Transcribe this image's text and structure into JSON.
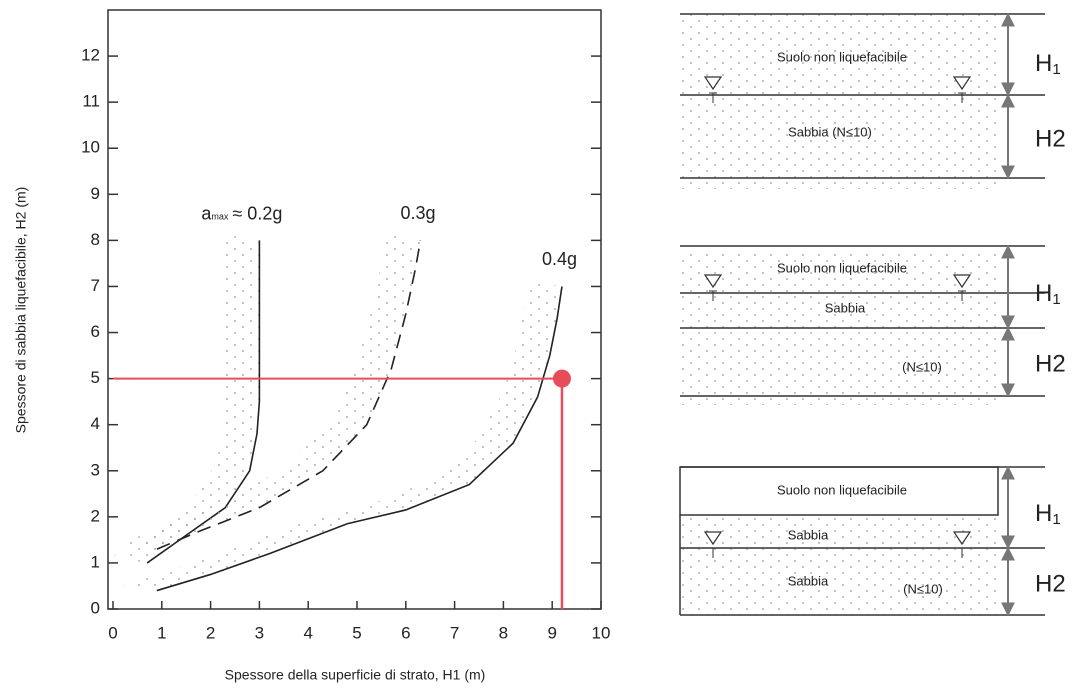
{
  "chart_data": {
    "type": "line",
    "y_label": "Spessore di sabbia liquefacibile, H2 (m)",
    "x_label": "Spessore della superficie di strato, H1 (m)",
    "xlim": [
      0,
      10
    ],
    "ylim": [
      0,
      13
    ],
    "xticks": [
      0,
      1,
      2,
      3,
      4,
      5,
      6,
      7,
      8,
      9,
      10
    ],
    "yticks": [
      0,
      1,
      2,
      3,
      4,
      5,
      6,
      7,
      8,
      9,
      10,
      11,
      12
    ],
    "amax_symbol": "a",
    "amax_subscript": "max",
    "series": [
      {
        "name": "≈ 0.2g",
        "color": "#222222",
        "dash": "none",
        "x": [
          0.7,
          1.5,
          2.3,
          2.8,
          2.95,
          3.0,
          3.0,
          3.0,
          3.0
        ],
        "values": [
          1.0,
          1.6,
          2.2,
          3.0,
          3.8,
          4.5,
          5.0,
          6.5,
          8.0
        ]
      },
      {
        "name": "0.3g",
        "color": "#222222",
        "dash": "14 8",
        "x": [
          0.9,
          1.8,
          3.0,
          4.3,
          5.2,
          5.7,
          6.0,
          6.2,
          6.3
        ],
        "values": [
          1.3,
          1.7,
          2.2,
          3.0,
          4.0,
          5.2,
          6.4,
          7.4,
          8.0
        ]
      },
      {
        "name": "0.4g",
        "color": "#222222",
        "dash": "none",
        "x": [
          0.9,
          2.0,
          3.2,
          4.8,
          6.0,
          7.3,
          8.2,
          8.7,
          8.95,
          9.1,
          9.2
        ],
        "values": [
          0.4,
          0.75,
          1.2,
          1.85,
          2.15,
          2.7,
          3.6,
          4.6,
          5.5,
          6.3,
          7.0
        ]
      }
    ],
    "marker": {
      "x": 9.2,
      "y": 5,
      "color": "#e84c5a"
    }
  },
  "profiles": [
    {
      "upper": "Suolo non liquefacibile",
      "lower": "Sabbia (N≤10)",
      "h1": "H",
      "h1_sub": "1",
      "h2": "H2"
    },
    {
      "upper": "Suolo non liquefacibile",
      "middle": "Sabbia",
      "lower": "(N≤10)",
      "h1": "H",
      "h1_sub": "1",
      "h2": "H2"
    },
    {
      "upper": "Suolo non liquefacibile",
      "middle": "Sabbia",
      "lower": "Sabbia",
      "lower_note": "(N≤10)",
      "h1": "H",
      "h1_sub": "1",
      "h2": "H2"
    }
  ]
}
